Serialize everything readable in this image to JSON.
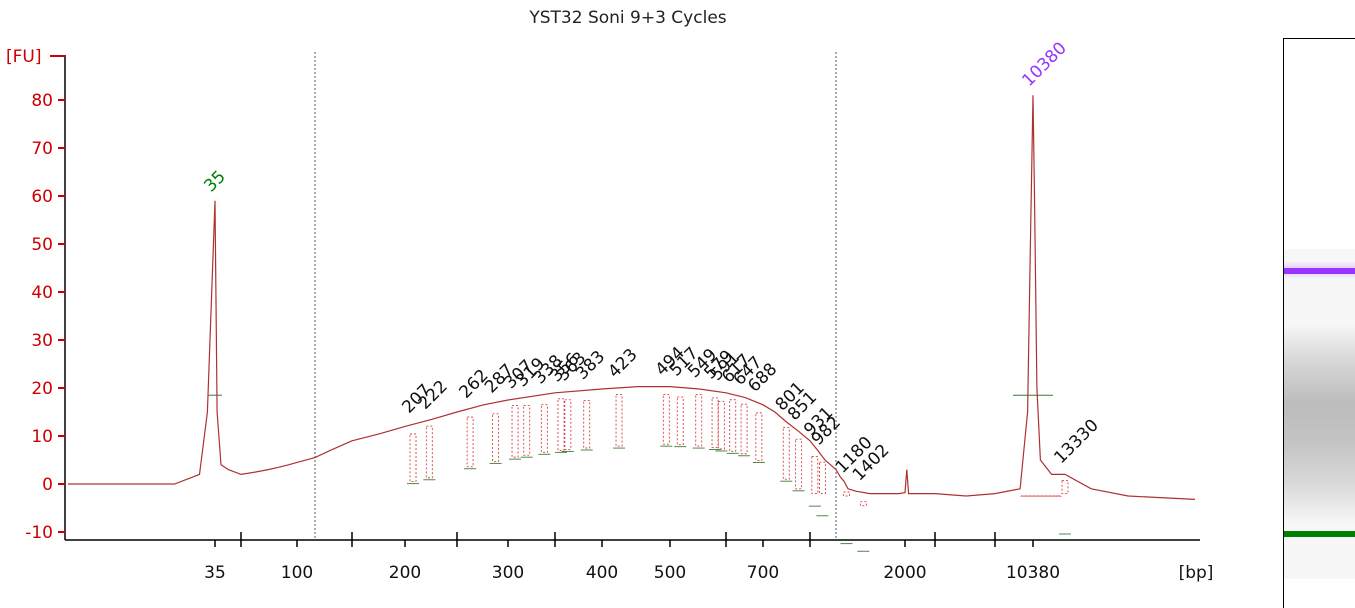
{
  "title": "YST32 Soni 9+3 Cycles",
  "colors": {
    "axis": "#cc0000",
    "trace": "#b03030",
    "marker_line": "#d94040",
    "lower_marker": "#008000",
    "upper_marker": "#9933ff",
    "peak_label": "#111111",
    "gridline": "#555577"
  },
  "chart_data": {
    "type": "line",
    "title": "YST32 Soni 9+3 Cycles",
    "xlabel": "[bp]",
    "ylabel": "[FU]",
    "ylim": [
      -12,
      87
    ],
    "yticks": [
      -10,
      0,
      10,
      20,
      30,
      40,
      50,
      60,
      70,
      80
    ],
    "xtick_labels": [
      "35",
      "100",
      "200",
      "300",
      "400",
      "500",
      "700",
      "2000",
      "10380"
    ],
    "series": [
      {
        "values_x_bp": [
          20,
          30,
          33,
          34,
          35,
          36,
          38,
          42,
          50,
          60,
          70,
          80,
          90,
          100,
          110,
          125,
          150,
          175,
          200,
          225,
          250,
          275,
          300,
          350,
          400,
          450,
          500,
          550,
          600,
          650,
          700,
          750,
          800,
          850,
          900,
          950,
          1000,
          1050,
          1100,
          1150,
          1200,
          1300,
          1500,
          1700,
          1900,
          2000,
          2050,
          2100,
          3000,
          5000,
          8000,
          9500,
          10000,
          10200,
          10380,
          10500,
          10700,
          11000,
          12000,
          13330,
          14000,
          15000,
          17000
        ],
        "values_y_fu": [
          0,
          0,
          2,
          15,
          59,
          15,
          4,
          3,
          2,
          2.5,
          3,
          3.5,
          4,
          4.5,
          5.5,
          7,
          9,
          10.5,
          12,
          13.5,
          15,
          16.5,
          17.5,
          19,
          19.8,
          20.3,
          20.3,
          19.8,
          19,
          18,
          16.5,
          15,
          13,
          11,
          9,
          7,
          5,
          3,
          1.5,
          0.5,
          -1,
          -1.5,
          -2,
          -2,
          -2,
          -1.8,
          3,
          -2,
          -2,
          -2.5,
          -2,
          -1,
          15,
          50,
          81,
          60,
          20,
          5,
          2,
          2,
          -1,
          -2.5,
          -3.2
        ]
      }
    ],
    "peaks": [
      {
        "label": "35",
        "bp": 35,
        "fu": 59,
        "kind": "lower_marker"
      },
      {
        "label": "10380",
        "bp": 10380,
        "fu": 81,
        "kind": "upper_marker"
      },
      {
        "label": "207",
        "bp": 207,
        "fu": 12.5
      },
      {
        "label": "222",
        "bp": 222,
        "fu": 13.3
      },
      {
        "label": "262",
        "bp": 262,
        "fu": 15.6
      },
      {
        "label": "287",
        "bp": 287,
        "fu": 16.7
      },
      {
        "label": "307",
        "bp": 307,
        "fu": 17.6
      },
      {
        "label": "319",
        "bp": 319,
        "fu": 18.0
      },
      {
        "label": "338",
        "bp": 338,
        "fu": 18.6
      },
      {
        "label": "356",
        "bp": 356,
        "fu": 19.0
      },
      {
        "label": "363",
        "bp": 363,
        "fu": 19.2
      },
      {
        "label": "383",
        "bp": 383,
        "fu": 19.5
      },
      {
        "label": "423",
        "bp": 423,
        "fu": 19.9
      },
      {
        "label": "494",
        "bp": 494,
        "fu": 20.3
      },
      {
        "label": "517",
        "bp": 517,
        "fu": 20.2
      },
      {
        "label": "549",
        "bp": 549,
        "fu": 19.9
      },
      {
        "label": "579",
        "bp": 579,
        "fu": 19.6
      },
      {
        "label": "591",
        "bp": 591,
        "fu": 19.3
      },
      {
        "label": "617",
        "bp": 617,
        "fu": 18.8
      },
      {
        "label": "647",
        "bp": 647,
        "fu": 18.3
      },
      {
        "label": "688",
        "bp": 688,
        "fu": 16.9
      },
      {
        "label": "801",
        "bp": 801,
        "fu": 13.0
      },
      {
        "label": "851",
        "bp": 851,
        "fu": 11.0
      },
      {
        "label": "931",
        "bp": 931,
        "fu": 7.8
      },
      {
        "label": "982",
        "bp": 982,
        "fu": 5.8
      },
      {
        "label": "1180",
        "bp": 1180,
        "fu": 0.0
      },
      {
        "label": "1402",
        "bp": 1402,
        "fu": -1.6
      },
      {
        "label": "13330",
        "bp": 13330,
        "fu": 2.0
      }
    ],
    "region_bounds_bp": [
      110,
      1050
    ],
    "gel_bands": [
      "upper_marker",
      "lower_marker"
    ]
  }
}
